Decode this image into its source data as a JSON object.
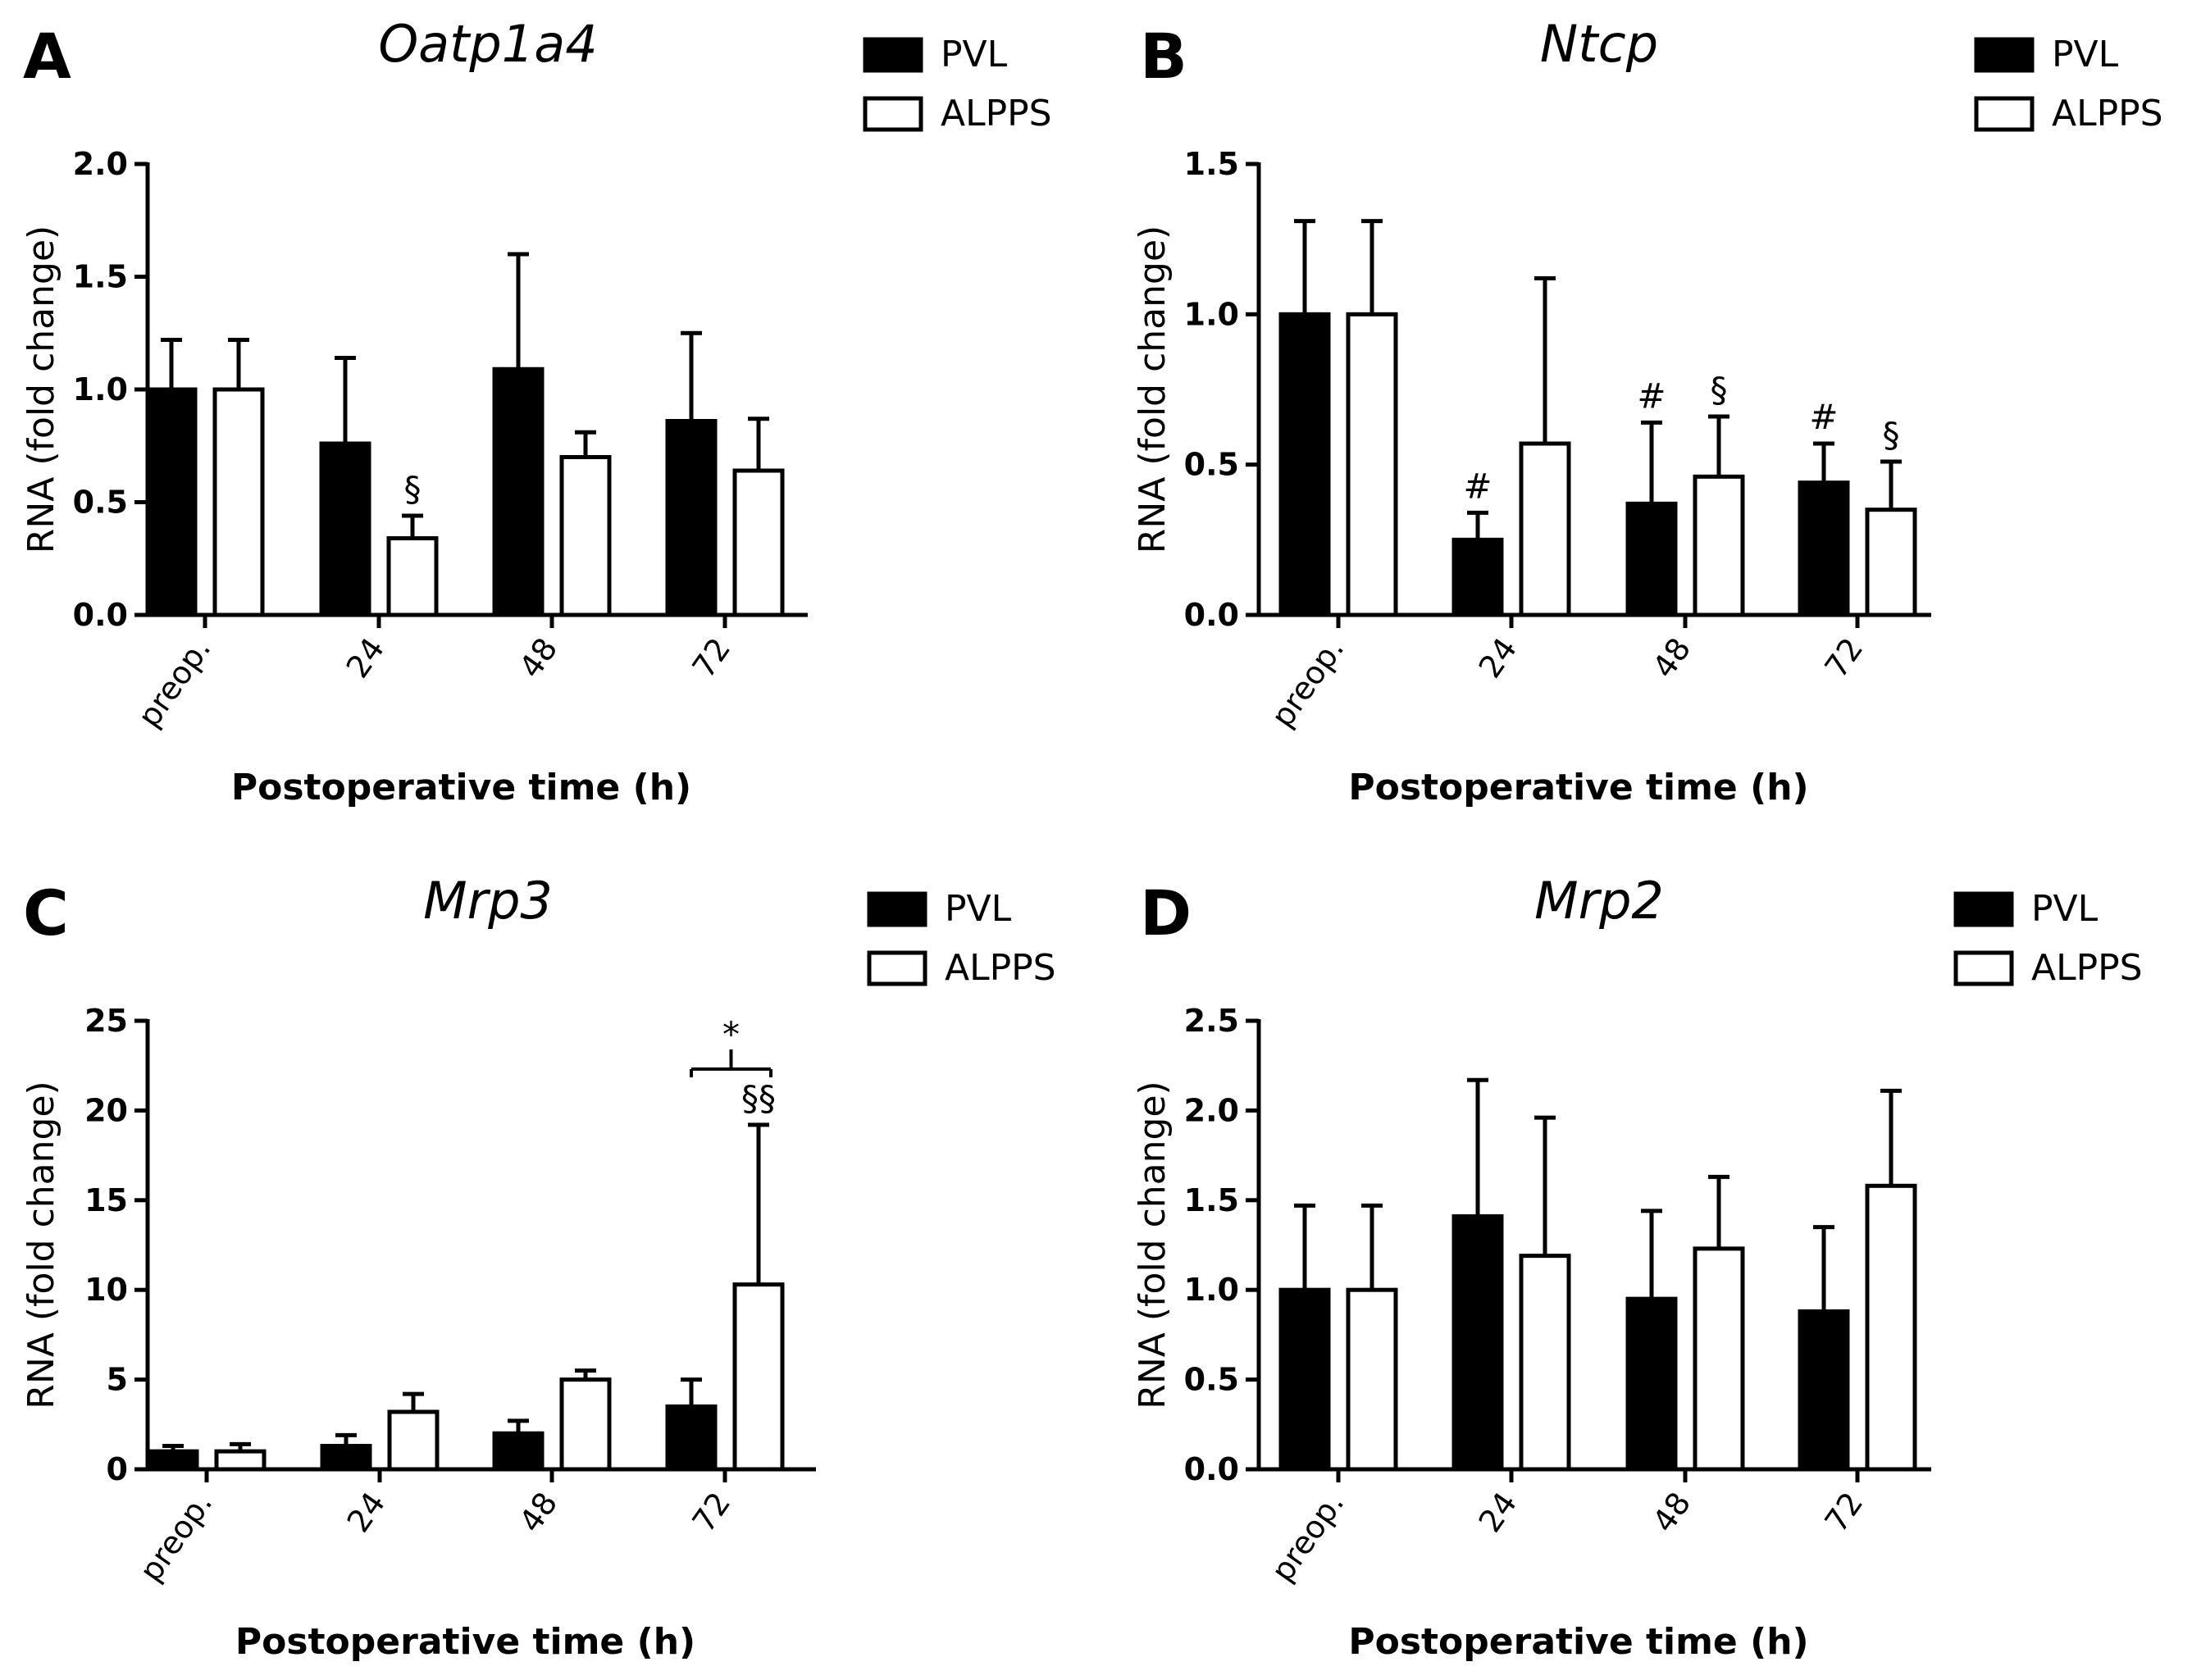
{
  "figure": {
    "colors": {
      "pvl": "#000000",
      "alpps": "#ffffff",
      "axis": "#000000"
    }
  },
  "chart_data": [
    {
      "type": "bar",
      "panel": "A",
      "title": "Oatp1a4",
      "xlabel": "Postoperative time (h)",
      "ylabel": "RNA (fold change)",
      "ylim": [
        0,
        2.0
      ],
      "yticks": [
        "0.0",
        "0.5",
        "1.0",
        "1.5",
        "2.0"
      ],
      "categories": [
        "preop.",
        "24",
        "48",
        "72"
      ],
      "legend_position": "top-right",
      "series": [
        {
          "name": "PVL",
          "values": [
            1.0,
            0.76,
            1.09,
            0.86
          ],
          "errors": [
            0.22,
            0.38,
            0.51,
            0.39
          ]
        },
        {
          "name": "ALPPS",
          "values": [
            1.0,
            0.34,
            0.7,
            0.64
          ],
          "errors": [
            0.22,
            0.1,
            0.11,
            0.23
          ]
        }
      ],
      "annotations": [
        {
          "text": "§",
          "category": 1,
          "series": 1
        }
      ]
    },
    {
      "type": "bar",
      "panel": "B",
      "title": "Ntcp",
      "xlabel": "Postoperative time (h)",
      "ylabel": "RNA (fold change)",
      "ylim": [
        0,
        1.5
      ],
      "yticks": [
        "0.0",
        "0.5",
        "1.0",
        "1.5"
      ],
      "categories": [
        "preop.",
        "24",
        "48",
        "72"
      ],
      "legend_position": "top-right",
      "series": [
        {
          "name": "PVL",
          "values": [
            1.0,
            0.25,
            0.37,
            0.44
          ],
          "errors": [
            0.31,
            0.09,
            0.27,
            0.13
          ]
        },
        {
          "name": "ALPPS",
          "values": [
            1.0,
            0.57,
            0.46,
            0.35
          ],
          "errors": [
            0.31,
            0.55,
            0.2,
            0.16
          ]
        }
      ],
      "annotations": [
        {
          "text": "#",
          "category": 1,
          "series": 0
        },
        {
          "text": "#",
          "category": 2,
          "series": 0
        },
        {
          "text": "§",
          "category": 2,
          "series": 1
        },
        {
          "text": "#",
          "category": 3,
          "series": 0
        },
        {
          "text": "§",
          "category": 3,
          "series": 1
        }
      ]
    },
    {
      "type": "bar",
      "panel": "C",
      "title": "Mrp3",
      "xlabel": "Postoperative time (h)",
      "ylabel": "RNA (fold change)",
      "ylim": [
        0,
        25
      ],
      "yticks": [
        "0",
        "5",
        "10",
        "15",
        "20",
        "25"
      ],
      "categories": [
        "preop.",
        "24",
        "48",
        "72"
      ],
      "legend_position": "top-right",
      "series": [
        {
          "name": "PVL",
          "values": [
            1.0,
            1.3,
            2.0,
            3.5
          ],
          "errors": [
            0.3,
            0.6,
            0.7,
            1.5
          ]
        },
        {
          "name": "ALPPS",
          "values": [
            1.0,
            3.2,
            5.0,
            10.3
          ],
          "errors": [
            0.4,
            1.0,
            0.5,
            8.9
          ]
        }
      ],
      "annotations": [
        {
          "text": "§§",
          "category": 3,
          "series": 1
        },
        {
          "text": "*",
          "category": 3,
          "series": "bracket"
        }
      ]
    },
    {
      "type": "bar",
      "panel": "D",
      "title": "Mrp2",
      "xlabel": "Postoperative time (h)",
      "ylabel": "RNA (fold change)",
      "ylim": [
        0,
        2.5
      ],
      "yticks": [
        "0.0",
        "0.5",
        "1.0",
        "1.5",
        "2.0",
        "2.5"
      ],
      "categories": [
        "preop.",
        "24",
        "48",
        "72"
      ],
      "legend_position": "top-right",
      "series": [
        {
          "name": "PVL",
          "values": [
            1.0,
            1.41,
            0.95,
            0.88
          ],
          "errors": [
            0.47,
            0.76,
            0.49,
            0.47
          ]
        },
        {
          "name": "ALPPS",
          "values": [
            1.0,
            1.19,
            1.23,
            1.58
          ],
          "errors": [
            0.47,
            0.77,
            0.4,
            0.53
          ]
        }
      ],
      "annotations": []
    }
  ]
}
